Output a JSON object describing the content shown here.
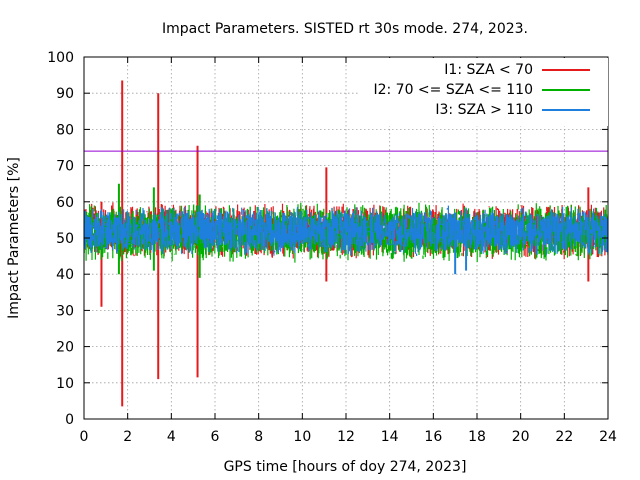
{
  "chart_data": {
    "type": "line",
    "title": "Impact Parameters. SISTED rt 30s mode. 274, 2023.",
    "xlabel": "GPS time [hours of doy 274, 2023]",
    "ylabel": "Impact Parameters [%]",
    "xlim": [
      0,
      24
    ],
    "ylim": [
      0,
      100
    ],
    "xticks": [
      0,
      2,
      4,
      6,
      8,
      10,
      12,
      14,
      16,
      18,
      20,
      22,
      24
    ],
    "yticks": [
      0,
      10,
      20,
      30,
      40,
      50,
      60,
      70,
      80,
      90,
      100
    ],
    "grid": true,
    "legend_position": "top-right",
    "reference_line": {
      "y": 74,
      "color": "#9400d3"
    },
    "series": [
      {
        "name": "I1: SZA < 70",
        "color": "#e41a1c",
        "band": {
          "low": 44,
          "high": 60
        },
        "spikes": [
          {
            "x": 1.75,
            "high": 93.5,
            "low": 3.5
          },
          {
            "x": 3.4,
            "high": 90,
            "low": 11
          },
          {
            "x": 5.2,
            "high": 75.5,
            "low": 11.5
          },
          {
            "x": 0.8,
            "high": 60,
            "low": 31
          },
          {
            "x": 11.1,
            "high": 69.5,
            "low": 38
          },
          {
            "x": 23.1,
            "high": 64,
            "low": 38
          }
        ]
      },
      {
        "name": "I2: 70 <= SZA <= 110",
        "color": "#00b000",
        "band": {
          "low": 43,
          "high": 60
        },
        "spikes": [
          {
            "x": 1.6,
            "high": 65,
            "low": 40
          },
          {
            "x": 3.2,
            "high": 64,
            "low": 41
          },
          {
            "x": 5.3,
            "high": 62,
            "low": 39
          }
        ]
      },
      {
        "name": "I3: SZA > 110",
        "color": "#1f7fdc",
        "band": {
          "low": 45,
          "high": 59
        },
        "spikes": [
          {
            "x": 17.0,
            "high": 57,
            "low": 40
          },
          {
            "x": 17.5,
            "high": 58,
            "low": 41
          }
        ]
      }
    ]
  }
}
